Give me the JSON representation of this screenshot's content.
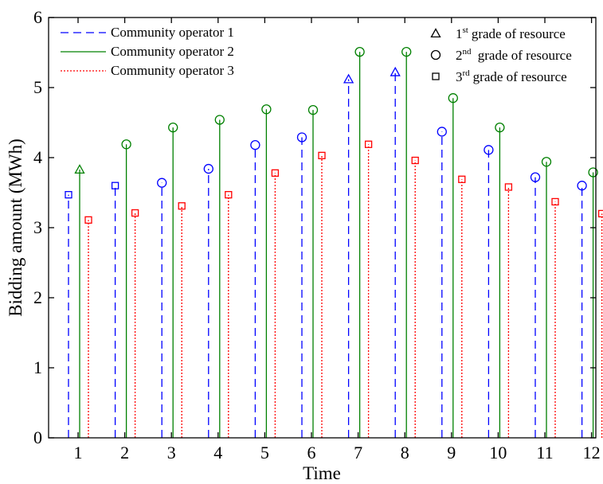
{
  "chart_data": {
    "type": "stem",
    "xlabel": "Time",
    "ylabel": "Bidding amount (MWh)",
    "categories": [
      "1",
      "2",
      "3",
      "4",
      "5",
      "6",
      "7",
      "8",
      "9",
      "10",
      "11",
      "12"
    ],
    "xticks": [
      "1",
      "2",
      "3",
      "4",
      "5",
      "6",
      "7",
      "8",
      "9",
      "10",
      "11",
      "12"
    ],
    "yticks": [
      "0",
      "1",
      "2",
      "3",
      "4",
      "5",
      "6"
    ],
    "ylim": [
      0,
      6
    ],
    "grid": false,
    "legend_position": "top",
    "series": [
      {
        "name": "Community operator 1",
        "color": "#0000ff",
        "line_style": "dashed",
        "values": [
          3.47,
          3.6,
          3.64,
          3.84,
          4.18,
          4.29,
          5.12,
          5.22,
          4.37,
          4.11,
          3.72,
          3.6
        ],
        "grades": [
          3,
          3,
          2,
          2,
          2,
          2,
          1,
          1,
          2,
          2,
          2,
          2
        ]
      },
      {
        "name": "Community operator 2",
        "color": "#008000",
        "line_style": "solid",
        "values": [
          3.83,
          4.19,
          4.43,
          4.54,
          4.69,
          4.68,
          5.51,
          5.51,
          4.85,
          4.43,
          3.94,
          3.79
        ],
        "grades": [
          1,
          2,
          2,
          2,
          2,
          2,
          2,
          2,
          2,
          2,
          2,
          2
        ]
      },
      {
        "name": "Community operator 3",
        "color": "#ff0000",
        "line_style": "dotted",
        "values": [
          3.11,
          3.21,
          3.31,
          3.47,
          3.78,
          4.03,
          4.19,
          3.96,
          3.69,
          3.58,
          3.37,
          3.2
        ],
        "grades": [
          3,
          3,
          3,
          3,
          3,
          3,
          3,
          3,
          3,
          3,
          3,
          3
        ]
      }
    ],
    "marker_legend": [
      {
        "grade": 1,
        "marker": "triangle",
        "ordinal": "1",
        "sup": "st",
        "text": "grade of resource"
      },
      {
        "grade": 2,
        "marker": "circle",
        "ordinal": "2",
        "sup": "nd",
        "text": " grade of resource"
      },
      {
        "grade": 3,
        "marker": "square",
        "ordinal": "3",
        "sup": "rd",
        "text": "grade of resource"
      }
    ]
  }
}
